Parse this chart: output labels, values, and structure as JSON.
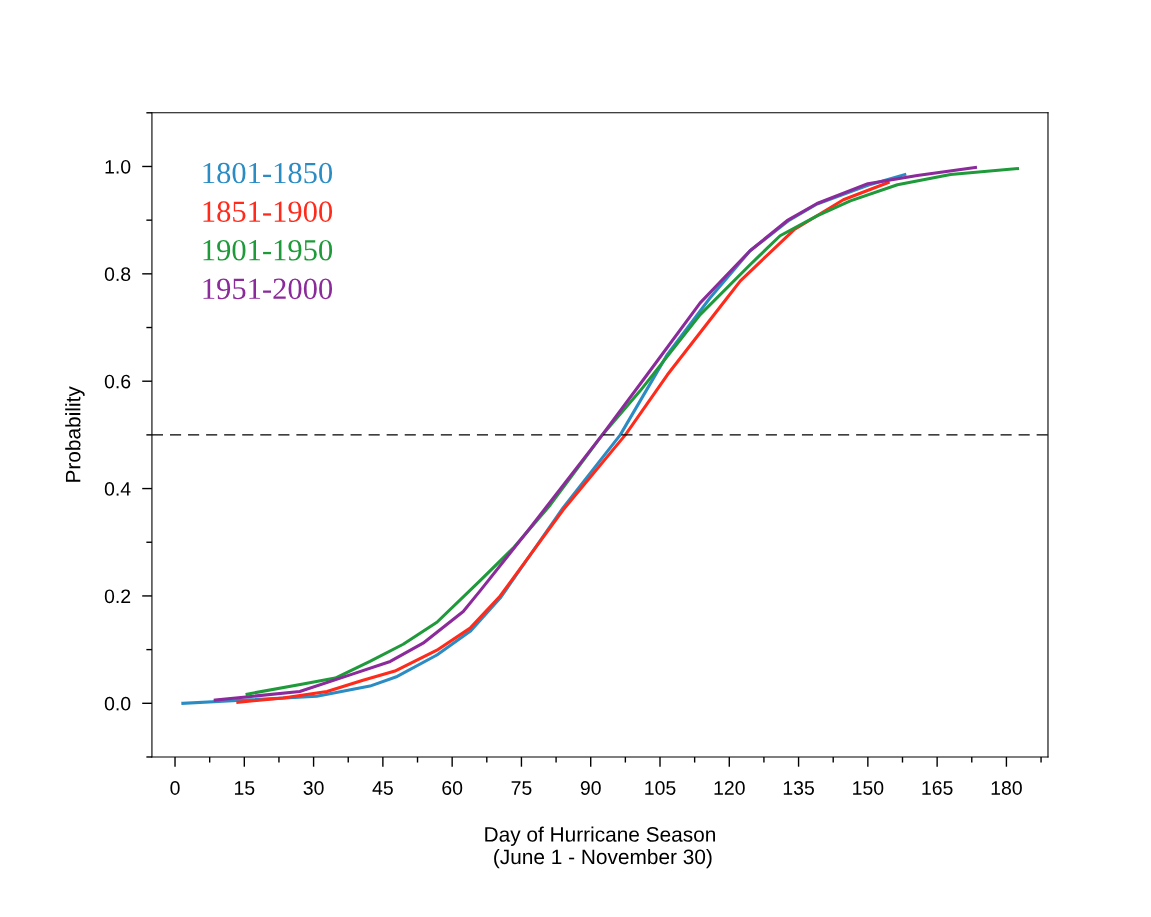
{
  "chart_data": {
    "type": "line",
    "xlabel": "Day of Hurricane Season\n (June 1 - November 30)",
    "ylabel": "Probability",
    "xlim": [
      -5,
      189
    ],
    "ylim": [
      -0.1,
      1.1
    ],
    "xticks": [
      0,
      15,
      30,
      45,
      60,
      75,
      90,
      105,
      120,
      135,
      150,
      165,
      180
    ],
    "yticks": [
      {
        "value": 0,
        "label": "0.0"
      },
      {
        "value": 0.2,
        "label": "0.2"
      },
      {
        "value": 0.4,
        "label": "0.4"
      },
      {
        "value": 0.6,
        "label": "0.6"
      },
      {
        "value": 0.8,
        "label": "0.8"
      },
      {
        "value": 1,
        "label": "1.0"
      }
    ],
    "grid": false,
    "legend": "top left",
    "line_style": "solid",
    "marker": "none",
    "ref_lines": [
      {
        "axis": "y",
        "value": 0.5,
        "color": "#000000",
        "line_style": "dashed"
      }
    ],
    "series": [
      {
        "name": "1801-1850",
        "color": "#2b8cc4",
        "x": [
          1.7,
          30.7,
          42.2,
          48.1,
          56.7,
          63.9,
          70.4,
          84,
          96.4,
          106.6,
          115.9,
          124.5,
          133,
          139,
          150,
          158
        ],
        "values": [
          0.0,
          0.013,
          0.032,
          0.05,
          0.09,
          0.134,
          0.196,
          0.364,
          0.5,
          0.65,
          0.756,
          0.843,
          0.9,
          0.93,
          0.965,
          0.985
        ]
      },
      {
        "name": "1851-1900",
        "color": "#ff2a1a",
        "x": [
          13.6,
          23.4,
          32.9,
          40.7,
          47.6,
          56.7,
          63.9,
          70.4,
          84,
          97.5,
          106.6,
          119.6,
          122.4,
          134,
          144.7,
          154.4
        ],
        "values": [
          0.002,
          0.01,
          0.022,
          0.043,
          0.06,
          0.099,
          0.14,
          0.2,
          0.36,
          0.5,
          0.612,
          0.756,
          0.787,
          0.882,
          0.938,
          0.97
        ]
      },
      {
        "name": "1901-1950",
        "color": "#1f9a3a",
        "x": [
          15.6,
          27.7,
          34.7,
          42.2,
          49.4,
          56.7,
          66,
          73.2,
          81.2,
          92.5,
          100.7,
          113.7,
          124.5,
          131,
          139,
          146.2,
          156.4,
          167.9,
          182.4
        ],
        "values": [
          0.017,
          0.036,
          0.047,
          0.078,
          0.11,
          0.151,
          0.228,
          0.289,
          0.369,
          0.5,
          0.582,
          0.724,
          0.817,
          0.871,
          0.908,
          0.936,
          0.966,
          0.985,
          0.996
        ]
      },
      {
        "name": "1951-2000",
        "color": "#8b2a9a",
        "x": [
          8.7,
          27,
          37.9,
          46.6,
          53.7,
          62.4,
          66,
          76.9,
          92.5,
          102.2,
          113.7,
          124.5,
          132.5,
          139,
          150,
          160.7,
          173.3
        ],
        "values": [
          0.006,
          0.022,
          0.053,
          0.078,
          0.112,
          0.171,
          0.209,
          0.327,
          0.5,
          0.612,
          0.746,
          0.843,
          0.899,
          0.931,
          0.968,
          0.983,
          0.998
        ]
      }
    ]
  }
}
